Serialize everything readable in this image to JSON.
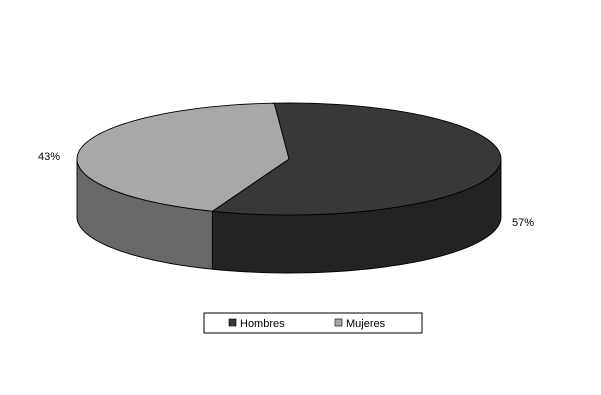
{
  "chart_data": {
    "type": "pie",
    "style": "3d",
    "categories": [
      "Hombres",
      "Mujeres"
    ],
    "values": [
      57,
      43
    ],
    "data_labels": [
      "57%",
      "43%"
    ],
    "colors": {
      "Hombres": "#383838",
      "Mujeres": "#a8a8a8"
    },
    "legend": {
      "placement": "bottom",
      "entries": [
        "Hombres",
        "Mujeres"
      ]
    }
  }
}
